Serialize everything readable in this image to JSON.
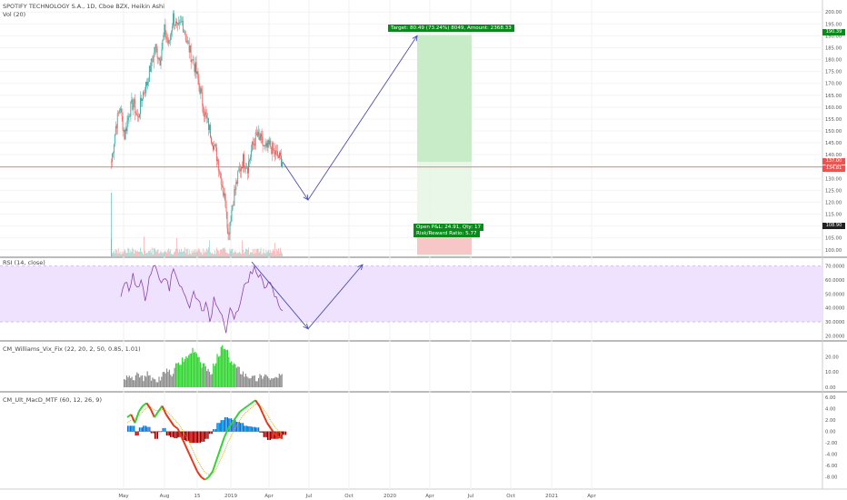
{
  "header": {
    "title": "SPOTIFY TECHNOLOGY S.A., 1D, Cboe BZX, Heikin Ashi",
    "volume_label": "Vol (20)"
  },
  "panes": {
    "rsi_label": "RSI (14, close)",
    "williams_label": "CM_Williams_Vix_Fix (22, 20, 2, 50, 0.85, 1.01)",
    "macd_label": "CM_Ult_MacD_MTF (60, 12, 26, 9)"
  },
  "trade": {
    "target_text": "Target: 80.49 (73.24%) 8049, Amount: 2368.33",
    "open_pnl_text": "Open P&L: 24.91, Qty: 17",
    "risk_reward_text": "Risk/Reward Ratio: 5.77",
    "target_price": 190.39,
    "stop_price": 108.9
  },
  "price_tags": {
    "red_top": "137.00",
    "red_bottom": "134.81",
    "green_top": "190.39",
    "dark_bottom": "108.90"
  },
  "colors": {
    "up": "#26a69a",
    "down": "#ef5350",
    "rsi_band": "#efe2ff",
    "rsi_line": "#8a44a8",
    "arrow": "#4b4fa8",
    "profit_zone": "#c8ebc8",
    "loss_zone": "#f7c7c7",
    "target_tag": "#0b8a1c"
  },
  "chart_data": [
    {
      "type": "candlestick",
      "title": "SPOTIFY TECHNOLOGY S.A., 1D, Cboe BZX, Heikin Ashi",
      "y_ticks": [
        "200.00",
        "195.00",
        "190.00",
        "185.00",
        "180.00",
        "175.00",
        "170.00",
        "165.00",
        "160.00",
        "155.00",
        "150.00",
        "145.00",
        "140.00",
        "135.00",
        "130.00",
        "125.00",
        "120.00",
        "115.00",
        "110.00",
        "105.00",
        "100.00"
      ],
      "ylim": [
        98,
        202
      ],
      "x_ticks": [
        "May",
        "Aug",
        "15",
        "2019",
        "Apr",
        "Jul",
        "Oct",
        "2020",
        "Apr",
        "Jul",
        "Oct",
        "2021",
        "Apr"
      ],
      "price_series": [
        {
          "t": 0,
          "p": 137
        },
        {
          "t": 2,
          "p": 152
        },
        {
          "t": 4,
          "p": 160
        },
        {
          "t": 6,
          "p": 148
        },
        {
          "t": 8,
          "p": 158
        },
        {
          "t": 10,
          "p": 162
        },
        {
          "t": 12,
          "p": 155
        },
        {
          "t": 14,
          "p": 165
        },
        {
          "t": 16,
          "p": 170
        },
        {
          "t": 18,
          "p": 178
        },
        {
          "t": 20,
          "p": 185
        },
        {
          "t": 22,
          "p": 180
        },
        {
          "t": 24,
          "p": 192
        },
        {
          "t": 26,
          "p": 186
        },
        {
          "t": 28,
          "p": 198
        },
        {
          "t": 30,
          "p": 192
        },
        {
          "t": 32,
          "p": 196
        },
        {
          "t": 34,
          "p": 188
        },
        {
          "t": 36,
          "p": 182
        },
        {
          "t": 38,
          "p": 176
        },
        {
          "t": 40,
          "p": 168
        },
        {
          "t": 42,
          "p": 158
        },
        {
          "t": 44,
          "p": 152
        },
        {
          "t": 46,
          "p": 145
        },
        {
          "t": 48,
          "p": 138
        },
        {
          "t": 50,
          "p": 128
        },
        {
          "t": 52,
          "p": 118
        },
        {
          "t": 53,
          "p": 106
        },
        {
          "t": 54,
          "p": 112
        },
        {
          "t": 56,
          "p": 124
        },
        {
          "t": 58,
          "p": 132
        },
        {
          "t": 60,
          "p": 138
        },
        {
          "t": 62,
          "p": 135
        },
        {
          "t": 64,
          "p": 143
        },
        {
          "t": 66,
          "p": 148
        },
        {
          "t": 68,
          "p": 146
        },
        {
          "t": 70,
          "p": 142
        },
        {
          "t": 72,
          "p": 144
        },
        {
          "t": 74,
          "p": 141
        },
        {
          "t": 76,
          "p": 139
        },
        {
          "t": 78,
          "p": 137
        }
      ],
      "projection": [
        {
          "t": 78,
          "p": 137
        },
        {
          "t": 90,
          "p": 121
        },
        {
          "t": 141,
          "p": 190
        }
      ]
    },
    {
      "type": "line",
      "title": "RSI (14, close)",
      "y_ticks": [
        "70.0000",
        "60.0000",
        "50.0000",
        "40.0000",
        "30.0000",
        "20.0000"
      ],
      "ylim": [
        17,
        75
      ],
      "band": [
        30,
        70
      ],
      "values": [
        48,
        58,
        52,
        65,
        55,
        60,
        45,
        62,
        70,
        66,
        58,
        61,
        52,
        68,
        60,
        55,
        48,
        40,
        52,
        46,
        38,
        44,
        30,
        48,
        40,
        35,
        22,
        40,
        32,
        38,
        50,
        58,
        66,
        70,
        62,
        60,
        55,
        58,
        48,
        42,
        38
      ],
      "projection": [
        {
          "t": 38,
          "v": 72
        },
        {
          "t": 53,
          "v": 27
        },
        {
          "t": 75,
          "v": 71
        }
      ]
    },
    {
      "type": "bar",
      "title": "CM_Williams_Vix_Fix (22, 20, 2, 50, 0.85, 1.01)",
      "y_ticks": [
        "20.00",
        "10.00",
        "0.00"
      ],
      "ylim": [
        0,
        28
      ],
      "values": [
        6,
        7,
        5,
        8,
        7,
        6,
        9,
        5,
        4,
        6,
        10,
        12,
        9,
        14,
        16,
        18,
        20,
        24,
        22,
        18,
        14,
        12,
        10,
        16,
        20,
        26,
        24,
        18,
        15,
        12,
        10,
        8,
        7,
        6,
        5,
        7,
        8,
        6,
        5,
        6,
        7
      ]
    },
    {
      "type": "line",
      "title": "CM_Ult_MacD_MTF (60, 12, 26, 9)",
      "y_ticks": [
        "6.00",
        "4.00",
        "2.00",
        "0.00",
        "-2.00",
        "-4.00",
        "-6.00",
        "-8.00"
      ],
      "ylim": [
        -9.5,
        6.5
      ],
      "macd": [
        2.5,
        3.0,
        1.5,
        3.5,
        4.5,
        5.0,
        4.0,
        2.5,
        3.5,
        4.5,
        3.0,
        2.0,
        1.0,
        0.5,
        -1.0,
        -2.5,
        -4.0,
        -5.5,
        -7.0,
        -8.0,
        -8.5,
        -8.0,
        -7.0,
        -5.0,
        -3.0,
        -1.0,
        0.5,
        1.5,
        2.5,
        3.5,
        4.0,
        4.5,
        5.0,
        5.5,
        4.5,
        3.0,
        1.5,
        0.5,
        -0.5,
        -1.0,
        -1.2
      ],
      "signal": [
        1.5,
        2.0,
        2.2,
        2.8,
        3.5,
        4.2,
        4.3,
        3.8,
        3.6,
        3.9,
        3.7,
        3.0,
        2.2,
        1.5,
        0.5,
        -0.8,
        -2.0,
        -3.5,
        -5.0,
        -6.2,
        -7.2,
        -7.6,
        -7.4,
        -6.5,
        -5.0,
        -3.5,
        -1.8,
        -0.5,
        0.8,
        2.0,
        3.0,
        3.6,
        4.2,
        4.8,
        4.7,
        4.0,
        3.0,
        1.8,
        0.8,
        0.0,
        -0.6
      ],
      "histogram": [
        1.0,
        1.0,
        -0.7,
        0.7,
        1.0,
        0.8,
        -0.3,
        -1.3,
        -0.1,
        0.6,
        -0.7,
        -1.0,
        -1.2,
        -1.0,
        -1.5,
        -1.7,
        -2.0,
        -2.0,
        -2.0,
        -1.8,
        -1.3,
        -0.4,
        0.4,
        1.5,
        2.0,
        2.5,
        2.3,
        2.0,
        1.7,
        1.5,
        1.0,
        0.9,
        0.8,
        0.7,
        -0.2,
        -1.0,
        -1.5,
        -1.3,
        -1.3,
        -1.0,
        -0.6
      ]
    }
  ]
}
